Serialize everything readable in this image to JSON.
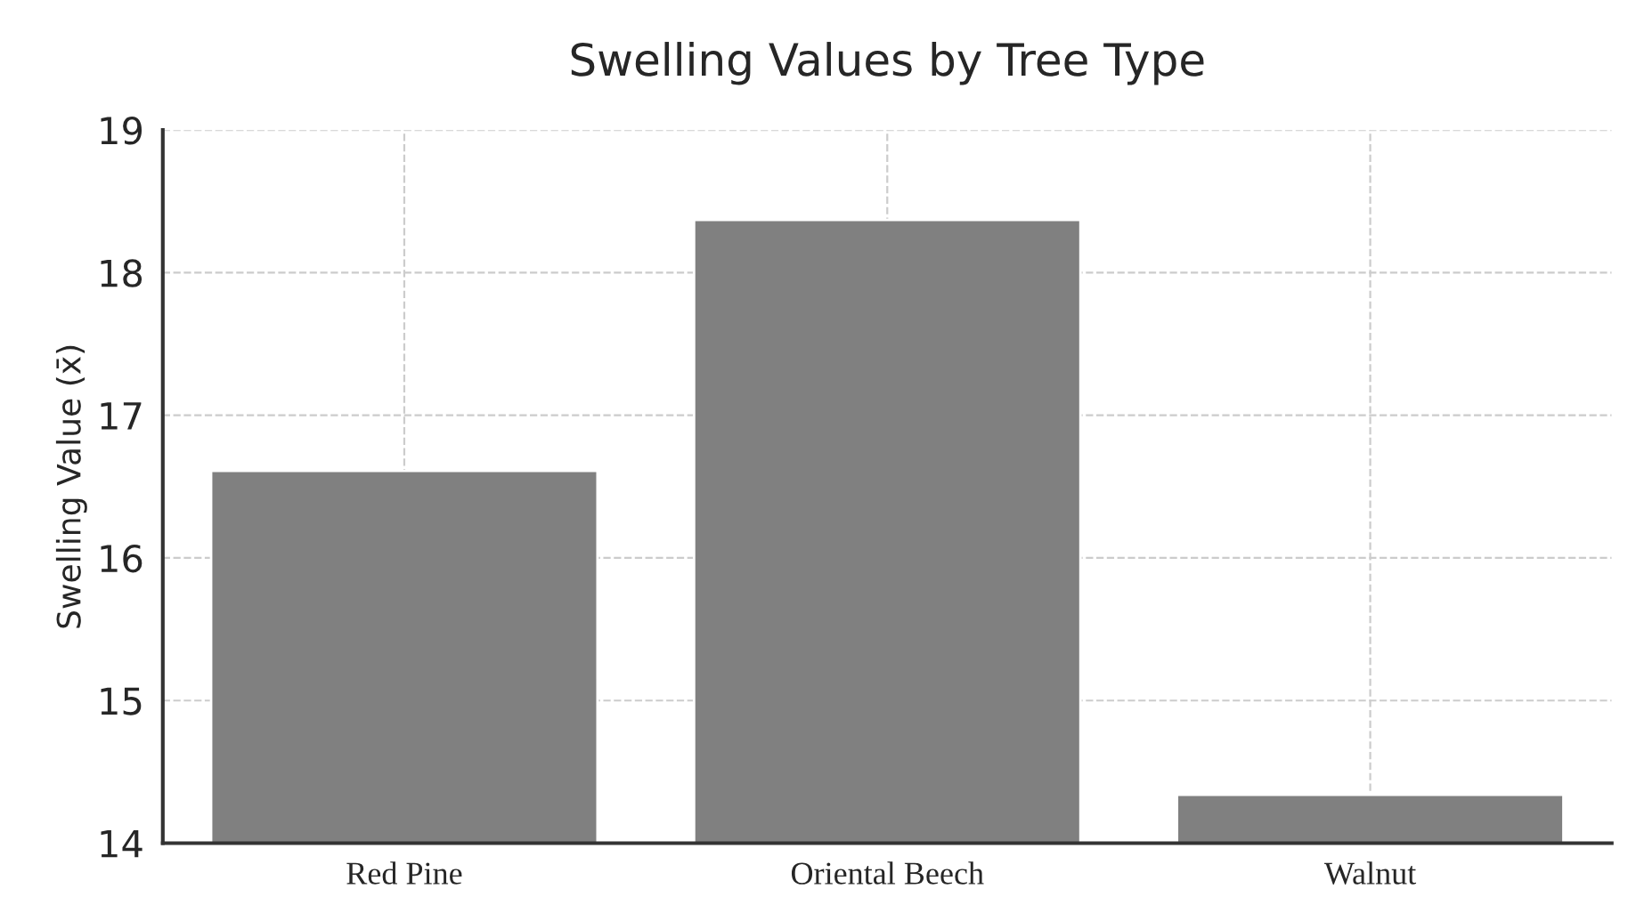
{
  "chart_data": {
    "type": "bar",
    "title": "Swelling Values by Tree Type",
    "ylabel": "Swelling Value (x̄)",
    "categories": [
      "Red Pine",
      "Oriental Beech",
      "Walnut"
    ],
    "values": [
      16.61,
      18.37,
      14.34
    ],
    "color": "#808080",
    "ylim": [
      14,
      19
    ],
    "yticks": [
      14,
      15,
      16,
      17,
      18,
      19
    ],
    "grid": true
  }
}
